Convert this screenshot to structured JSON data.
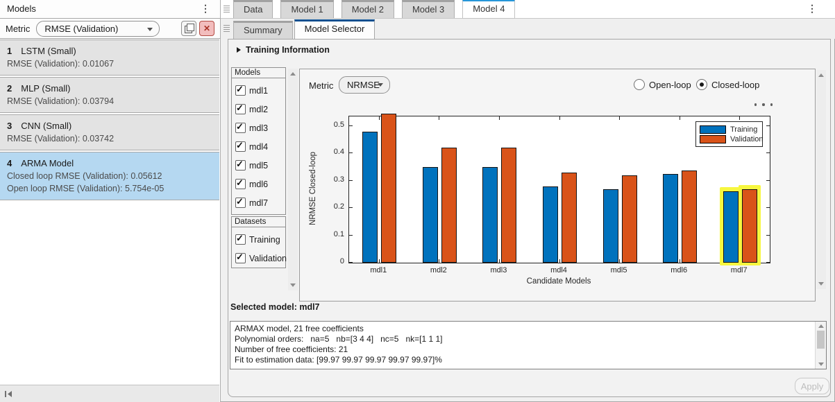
{
  "left_panel": {
    "title": "Models",
    "metric_label": "Metric",
    "metric_value": "RMSE (Validation)",
    "items": [
      {
        "index": "1",
        "name": "LSTM (Small)",
        "details": [
          "RMSE (Validation): 0.01067"
        ],
        "selected": false
      },
      {
        "index": "2",
        "name": "MLP (Small)",
        "details": [
          "RMSE (Validation): 0.03794"
        ],
        "selected": false
      },
      {
        "index": "3",
        "name": "CNN (Small)",
        "details": [
          "RMSE (Validation): 0.03742"
        ],
        "selected": false
      },
      {
        "index": "4",
        "name": "ARMA Model",
        "details": [
          "Closed loop RMSE (Validation): 0.05612",
          "Open loop RMSE (Validation): 5.754e-05"
        ],
        "selected": true
      }
    ],
    "selected_color": "#b5d8f1"
  },
  "doc_tabs": {
    "tabs": [
      "Data",
      "Model 1",
      "Model 2",
      "Model 3",
      "Model 4"
    ],
    "active": "Model 4",
    "active_accent": "#2696d9"
  },
  "sub_tabs": {
    "tabs": [
      "Summary",
      "Model Selector"
    ],
    "active": "Model Selector",
    "active_accent": "#0a4f8f"
  },
  "selector_tab": {
    "training_information_label": "Training Information",
    "models_box": {
      "header": "Models",
      "items": [
        {
          "label": "mdl1",
          "checked": true
        },
        {
          "label": "mdl2",
          "checked": true
        },
        {
          "label": "mdl3",
          "checked": true
        },
        {
          "label": "mdl4",
          "checked": true
        },
        {
          "label": "mdl5",
          "checked": true
        },
        {
          "label": "mdl6",
          "checked": true
        },
        {
          "label": "mdl7",
          "checked": true
        }
      ]
    },
    "datasets_box": {
      "header": "Datasets",
      "items": [
        {
          "label": "Training",
          "checked": true
        },
        {
          "label": "Validation",
          "checked": true
        }
      ]
    },
    "metric_label": "Metric",
    "metric_value": "NRMSE",
    "loop_radios": [
      {
        "label": "Open-loop",
        "selected": false
      },
      {
        "label": "Closed-loop",
        "selected": true
      }
    ],
    "selected_model_text": "Selected model: mdl7",
    "model_details_lines": [
      "ARMAX model, 21 free coefficients",
      "Polynomial orders:   na=5   nb=[3 4 4]   nc=5   nk=[1 1 1]",
      "Number of free coefficients: 21",
      "Fit to estimation data: [99.97 99.97 99.97 99.97 99.97]%",
      "- - - - - - - - - - - - - - - - - - - - - - - - - - - - - - - - - - - - - - - - - - - - - - - - - - - - - - - - - - - - - - - - - - - - - - - - - - - - - - - - - - - - - - - - - - - -"
    ],
    "apply_button_label": "Apply"
  },
  "chart_data": {
    "type": "bar",
    "title": "",
    "categories": [
      "mdl1",
      "mdl2",
      "mdl3",
      "mdl4",
      "mdl5",
      "mdl6",
      "mdl7"
    ],
    "series": [
      {
        "name": "Training",
        "color": "#0072BD",
        "values": [
          0.48,
          0.35,
          0.35,
          0.28,
          0.27,
          0.325,
          0.26
        ]
      },
      {
        "name": "Validation",
        "color": "#D95319",
        "values": [
          0.545,
          0.42,
          0.42,
          0.33,
          0.32,
          0.336,
          0.268
        ]
      }
    ],
    "xlabel": "Candidate Models",
    "ylabel": "NRMSE Closed-loop",
    "ylim": [
      0,
      0.535
    ],
    "yticks": [
      0,
      0.1,
      0.2,
      0.3,
      0.4,
      0.5
    ],
    "legend_position": "top-right",
    "grid": false,
    "highlighted_category": "mdl7",
    "highlight_color": "#f7f73f"
  }
}
